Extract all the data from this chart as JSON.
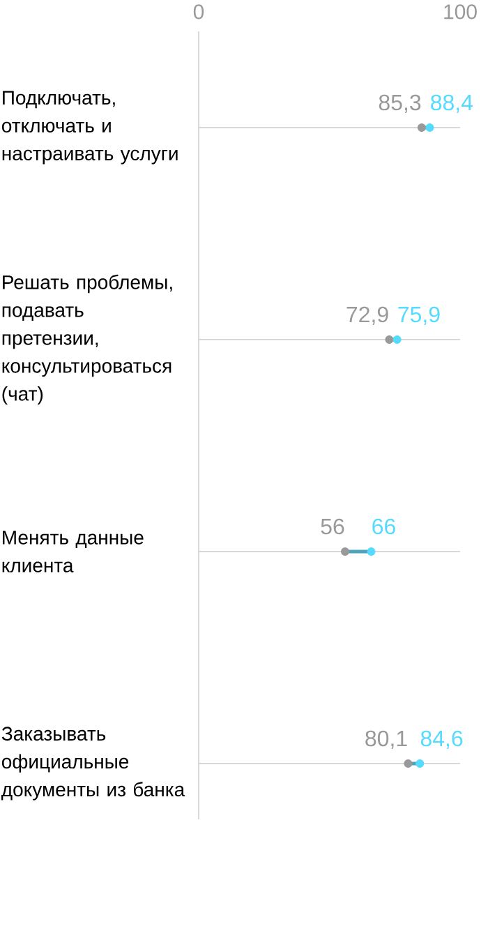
{
  "chart_data": {
    "type": "scatter",
    "orientation": "horizontal",
    "categories": [
      "Подключать, отключать и настраивать услуги",
      "Решать проблемы, подавать претензии, консультироваться (чат)",
      "Менять данные клиента",
      "Заказывать официальные документы из банка"
    ],
    "series": [
      {
        "color": "#999999",
        "values": [
          85.3,
          72.9,
          56,
          80.1
        ],
        "value_labels": [
          "85,3",
          "72,9",
          "56",
          "80,1"
        ]
      },
      {
        "color": "#55dbff",
        "values": [
          88.4,
          75.9,
          66,
          84.6
        ],
        "value_labels": [
          "88,4",
          "75,9",
          "66",
          "84,6"
        ]
      }
    ],
    "xlim": [
      0,
      100
    ],
    "xticks": [
      0,
      100
    ],
    "grid": "y",
    "marker": "circle"
  }
}
